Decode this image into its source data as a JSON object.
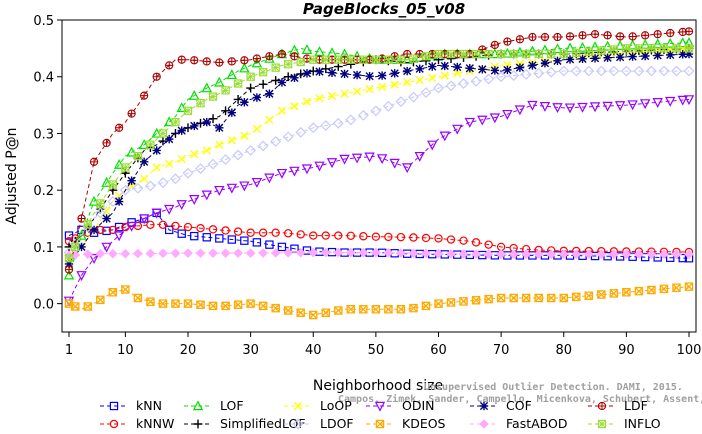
{
  "chart_data": {
    "type": "line",
    "title": "PageBlocks_05_v08",
    "xlabel": "Neighborhood size",
    "ylabel": "Adjusted P@n",
    "xlim": [
      1,
      100
    ],
    "ylim": [
      -0.05,
      0.5
    ],
    "xticks": [
      1,
      10,
      20,
      30,
      40,
      50,
      60,
      70,
      80,
      90,
      100
    ],
    "yticks": [
      0.0,
      0.1,
      0.2,
      0.3,
      0.4,
      0.5
    ],
    "ytick_labels": [
      "0.0",
      "0.1",
      "0.2",
      "0.3",
      "0.4",
      "0.5"
    ],
    "grid": false,
    "legend_position": "bottom",
    "credit_line1": "Unsupervised Outlier Detection. DAMI, 2015.",
    "credit_line2": "Campos, Zimek, Sander, Campello, Micenkova, Schubert, Assent, Houle",
    "series": [
      {
        "name": "kNN",
        "color": "#0000ff",
        "marker": "square",
        "points": [
          [
            1,
            0.12
          ],
          [
            3,
            0.13
          ],
          [
            5,
            0.125
          ],
          [
            8,
            0.13
          ],
          [
            10,
            0.14
          ],
          [
            13,
            0.15
          ],
          [
            15,
            0.16
          ],
          [
            17,
            0.13
          ],
          [
            20,
            0.12
          ],
          [
            25,
            0.115
          ],
          [
            30,
            0.11
          ],
          [
            35,
            0.1
          ],
          [
            40,
            0.092
          ],
          [
            45,
            0.09
          ],
          [
            50,
            0.09
          ],
          [
            55,
            0.088
          ],
          [
            60,
            0.087
          ],
          [
            70,
            0.085
          ],
          [
            80,
            0.085
          ],
          [
            90,
            0.083
          ],
          [
            100,
            0.08
          ]
        ]
      },
      {
        "name": "kNNW",
        "color": "#ff0000",
        "marker": "circle",
        "points": [
          [
            1,
            0.11
          ],
          [
            3,
            0.12
          ],
          [
            5,
            0.13
          ],
          [
            8,
            0.13
          ],
          [
            10,
            0.135
          ],
          [
            15,
            0.14
          ],
          [
            20,
            0.135
          ],
          [
            25,
            0.13
          ],
          [
            30,
            0.125
          ],
          [
            35,
            0.125
          ],
          [
            40,
            0.12
          ],
          [
            45,
            0.12
          ],
          [
            50,
            0.118
          ],
          [
            55,
            0.117
          ],
          [
            60,
            0.115
          ],
          [
            65,
            0.11
          ],
          [
            70,
            0.1
          ],
          [
            75,
            0.095
          ],
          [
            80,
            0.093
          ],
          [
            90,
            0.092
          ],
          [
            100,
            0.091
          ]
        ]
      },
      {
        "name": "LOF",
        "color": "#00e000",
        "marker": "triangle",
        "points": [
          [
            1,
            0.05
          ],
          [
            3,
            0.12
          ],
          [
            5,
            0.18
          ],
          [
            8,
            0.23
          ],
          [
            10,
            0.26
          ],
          [
            13,
            0.28
          ],
          [
            15,
            0.3
          ],
          [
            18,
            0.33
          ],
          [
            20,
            0.36
          ],
          [
            23,
            0.38
          ],
          [
            25,
            0.39
          ],
          [
            28,
            0.41
          ],
          [
            30,
            0.42
          ],
          [
            35,
            0.44
          ],
          [
            38,
            0.45
          ],
          [
            40,
            0.445
          ],
          [
            45,
            0.44
          ],
          [
            50,
            0.43
          ],
          [
            55,
            0.43
          ],
          [
            60,
            0.44
          ],
          [
            70,
            0.44
          ],
          [
            80,
            0.45
          ],
          [
            90,
            0.455
          ],
          [
            100,
            0.46
          ]
        ]
      },
      {
        "name": "SimplifiedLOF",
        "color": "#000000",
        "marker": "plus",
        "points": [
          [
            1,
            0.1
          ],
          [
            3,
            0.12
          ],
          [
            5,
            0.15
          ],
          [
            8,
            0.2
          ],
          [
            10,
            0.23
          ],
          [
            13,
            0.27
          ],
          [
            15,
            0.28
          ],
          [
            18,
            0.3
          ],
          [
            20,
            0.31
          ],
          [
            25,
            0.33
          ],
          [
            28,
            0.36
          ],
          [
            30,
            0.38
          ],
          [
            33,
            0.39
          ],
          [
            36,
            0.4
          ],
          [
            40,
            0.41
          ],
          [
            45,
            0.42
          ],
          [
            50,
            0.43
          ],
          [
            55,
            0.425
          ],
          [
            60,
            0.43
          ],
          [
            70,
            0.44
          ],
          [
            80,
            0.44
          ],
          [
            90,
            0.445
          ],
          [
            100,
            0.45
          ]
        ]
      },
      {
        "name": "LoOP",
        "color": "#ffff00",
        "marker": "x",
        "points": [
          [
            1,
            0.08
          ],
          [
            3,
            0.1
          ],
          [
            5,
            0.13
          ],
          [
            8,
            0.18
          ],
          [
            10,
            0.2
          ],
          [
            13,
            0.22
          ],
          [
            15,
            0.24
          ],
          [
            18,
            0.25
          ],
          [
            20,
            0.26
          ],
          [
            23,
            0.27
          ],
          [
            25,
            0.28
          ],
          [
            30,
            0.3
          ],
          [
            35,
            0.34
          ],
          [
            40,
            0.36
          ],
          [
            45,
            0.37
          ],
          [
            50,
            0.38
          ],
          [
            55,
            0.39
          ],
          [
            60,
            0.4
          ],
          [
            65,
            0.41
          ],
          [
            70,
            0.42
          ],
          [
            80,
            0.43
          ],
          [
            90,
            0.44
          ],
          [
            100,
            0.45
          ]
        ]
      },
      {
        "name": "LDOF",
        "color": "#c8c8ff",
        "marker": "diamond",
        "points": [
          [
            1,
            0.09
          ],
          [
            3,
            0.12
          ],
          [
            5,
            0.15
          ],
          [
            8,
            0.18
          ],
          [
            10,
            0.2
          ],
          [
            13,
            0.205
          ],
          [
            15,
            0.21
          ],
          [
            18,
            0.22
          ],
          [
            20,
            0.23
          ],
          [
            25,
            0.25
          ],
          [
            30,
            0.27
          ],
          [
            35,
            0.29
          ],
          [
            40,
            0.31
          ],
          [
            45,
            0.32
          ],
          [
            50,
            0.34
          ],
          [
            55,
            0.36
          ],
          [
            60,
            0.38
          ],
          [
            65,
            0.39
          ],
          [
            70,
            0.4
          ],
          [
            80,
            0.41
          ],
          [
            90,
            0.41
          ],
          [
            100,
            0.41
          ]
        ]
      },
      {
        "name": "ODIN",
        "color": "#9900ff",
        "marker": "triangle-down",
        "points": [
          [
            1,
            0.005
          ],
          [
            3,
            0.05
          ],
          [
            5,
            0.08
          ],
          [
            8,
            0.11
          ],
          [
            10,
            0.13
          ],
          [
            13,
            0.15
          ],
          [
            15,
            0.16
          ],
          [
            18,
            0.17
          ],
          [
            20,
            0.18
          ],
          [
            25,
            0.2
          ],
          [
            30,
            0.21
          ],
          [
            35,
            0.23
          ],
          [
            40,
            0.24
          ],
          [
            45,
            0.255
          ],
          [
            50,
            0.26
          ],
          [
            55,
            0.24
          ],
          [
            60,
            0.29
          ],
          [
            65,
            0.32
          ],
          [
            70,
            0.33
          ],
          [
            75,
            0.35
          ],
          [
            80,
            0.345
          ],
          [
            90,
            0.35
          ],
          [
            100,
            0.36
          ]
        ]
      },
      {
        "name": "KDEOS",
        "color": "#ffaa00",
        "marker": "square-x",
        "points": [
          [
            1,
            0.0
          ],
          [
            3,
            -0.01
          ],
          [
            5,
            0.0
          ],
          [
            8,
            0.02
          ],
          [
            10,
            0.025
          ],
          [
            12,
            0.01
          ],
          [
            15,
            0.0
          ],
          [
            20,
            0.0
          ],
          [
            25,
            -0.005
          ],
          [
            30,
            0.0
          ],
          [
            35,
            -0.01
          ],
          [
            40,
            -0.02
          ],
          [
            45,
            -0.01
          ],
          [
            50,
            -0.01
          ],
          [
            55,
            -0.01
          ],
          [
            60,
            0.0
          ],
          [
            65,
            0.005
          ],
          [
            70,
            0.01
          ],
          [
            75,
            0.01
          ],
          [
            80,
            0.01
          ],
          [
            85,
            0.015
          ],
          [
            90,
            0.02
          ],
          [
            95,
            0.025
          ],
          [
            100,
            0.03
          ]
        ]
      },
      {
        "name": "COF",
        "color": "#000080",
        "marker": "asterisk",
        "points": [
          [
            1,
            0.07
          ],
          [
            3,
            0.1
          ],
          [
            5,
            0.13
          ],
          [
            8,
            0.16
          ],
          [
            10,
            0.2
          ],
          [
            13,
            0.25
          ],
          [
            15,
            0.27
          ],
          [
            18,
            0.3
          ],
          [
            20,
            0.31
          ],
          [
            23,
            0.32
          ],
          [
            25,
            0.31
          ],
          [
            28,
            0.35
          ],
          [
            30,
            0.36
          ],
          [
            33,
            0.37
          ],
          [
            35,
            0.39
          ],
          [
            40,
            0.41
          ],
          [
            45,
            0.405
          ],
          [
            50,
            0.4
          ],
          [
            55,
            0.41
          ],
          [
            60,
            0.42
          ],
          [
            70,
            0.41
          ],
          [
            80,
            0.43
          ],
          [
            90,
            0.435
          ],
          [
            100,
            0.44
          ]
        ]
      },
      {
        "name": "FastABOD",
        "color": "#ffaaff",
        "marker": "diamond-filled",
        "points": [
          [
            1,
            0.085
          ],
          [
            5,
            0.088
          ],
          [
            10,
            0.088
          ],
          [
            20,
            0.089
          ],
          [
            30,
            0.089
          ],
          [
            40,
            0.09
          ],
          [
            50,
            0.09
          ],
          [
            60,
            0.088
          ],
          [
            70,
            0.087
          ],
          [
            80,
            0.087
          ],
          [
            90,
            0.087
          ],
          [
            100,
            0.087
          ]
        ]
      },
      {
        "name": "LDF",
        "color": "#aa0000",
        "marker": "circle-plus",
        "points": [
          [
            1,
            0.06
          ],
          [
            3,
            0.15
          ],
          [
            5,
            0.25
          ],
          [
            8,
            0.3
          ],
          [
            10,
            0.32
          ],
          [
            12,
            0.35
          ],
          [
            15,
            0.4
          ],
          [
            18,
            0.43
          ],
          [
            20,
            0.43
          ],
          [
            25,
            0.425
          ],
          [
            30,
            0.43
          ],
          [
            35,
            0.44
          ],
          [
            40,
            0.43
          ],
          [
            45,
            0.43
          ],
          [
            50,
            0.43
          ],
          [
            55,
            0.44
          ],
          [
            60,
            0.44
          ],
          [
            65,
            0.44
          ],
          [
            70,
            0.46
          ],
          [
            75,
            0.47
          ],
          [
            80,
            0.47
          ],
          [
            85,
            0.475
          ],
          [
            90,
            0.47
          ],
          [
            95,
            0.475
          ],
          [
            100,
            0.48
          ]
        ]
      },
      {
        "name": "INFLO",
        "color": "#99dd33",
        "marker": "square-cross",
        "points": [
          [
            1,
            0.08
          ],
          [
            3,
            0.12
          ],
          [
            5,
            0.16
          ],
          [
            8,
            0.21
          ],
          [
            10,
            0.24
          ],
          [
            13,
            0.27
          ],
          [
            15,
            0.29
          ],
          [
            18,
            0.32
          ],
          [
            20,
            0.34
          ],
          [
            23,
            0.36
          ],
          [
            25,
            0.37
          ],
          [
            30,
            0.4
          ],
          [
            35,
            0.42
          ],
          [
            40,
            0.43
          ],
          [
            45,
            0.43
          ],
          [
            50,
            0.43
          ],
          [
            55,
            0.43
          ],
          [
            60,
            0.44
          ],
          [
            70,
            0.44
          ],
          [
            80,
            0.44
          ],
          [
            90,
            0.45
          ],
          [
            100,
            0.45
          ]
        ]
      }
    ]
  }
}
